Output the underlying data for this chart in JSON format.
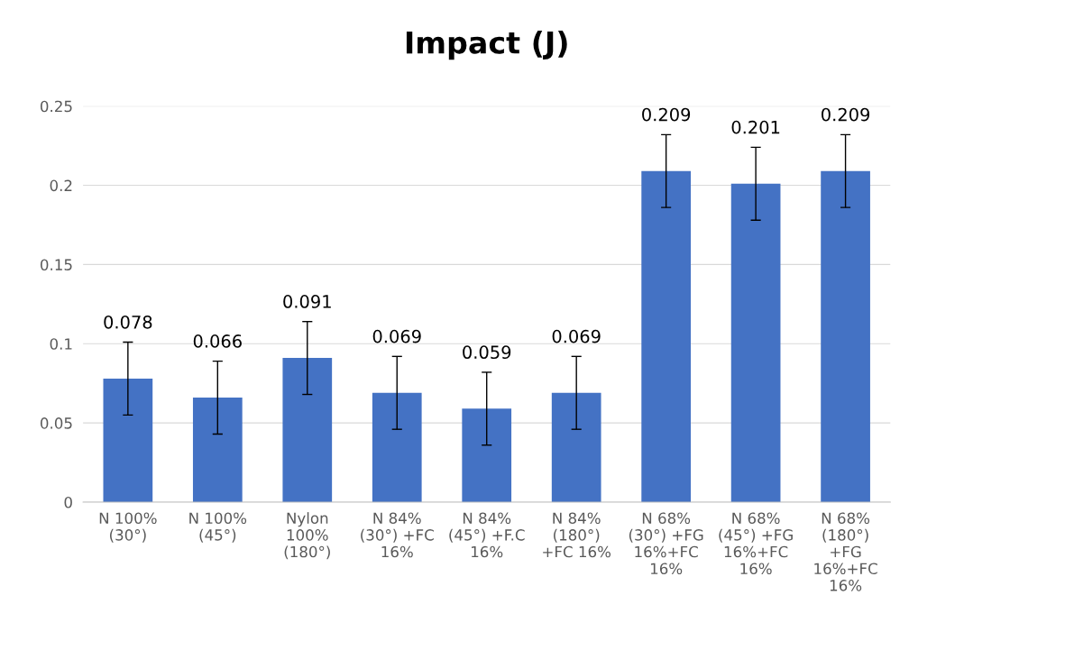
{
  "chart_data": {
    "type": "bar",
    "title": "Impact (J)",
    "categories": [
      "N 100%\n(30°)",
      "N 100%\n(45°)",
      "Nylon\n100%\n(180°)",
      "N 84%\n(30°) +FC\n16%",
      "N 84%\n(45°) +F.C\n16%",
      "N 84%\n(180°)\n+FC 16%",
      "N 68%\n(30°) +FG\n16%+FC\n16%",
      "N 68%\n(45°) +FG\n16%+FC\n16%",
      "N 68%\n(180°)\n+FG\n16%+FC\n16%"
    ],
    "values": [
      0.078,
      0.066,
      0.091,
      0.069,
      0.059,
      0.069,
      0.209,
      0.201,
      0.209
    ],
    "errors": [
      0.023,
      0.023,
      0.023,
      0.023,
      0.023,
      0.023,
      0.023,
      0.023,
      0.023
    ],
    "color": "#4472c4",
    "data_labels": true,
    "ylim": [
      0,
      0.25
    ],
    "yticks": [
      0,
      0.05,
      0.1,
      0.15,
      0.2,
      0.25
    ],
    "grid": "y",
    "legend": false
  }
}
